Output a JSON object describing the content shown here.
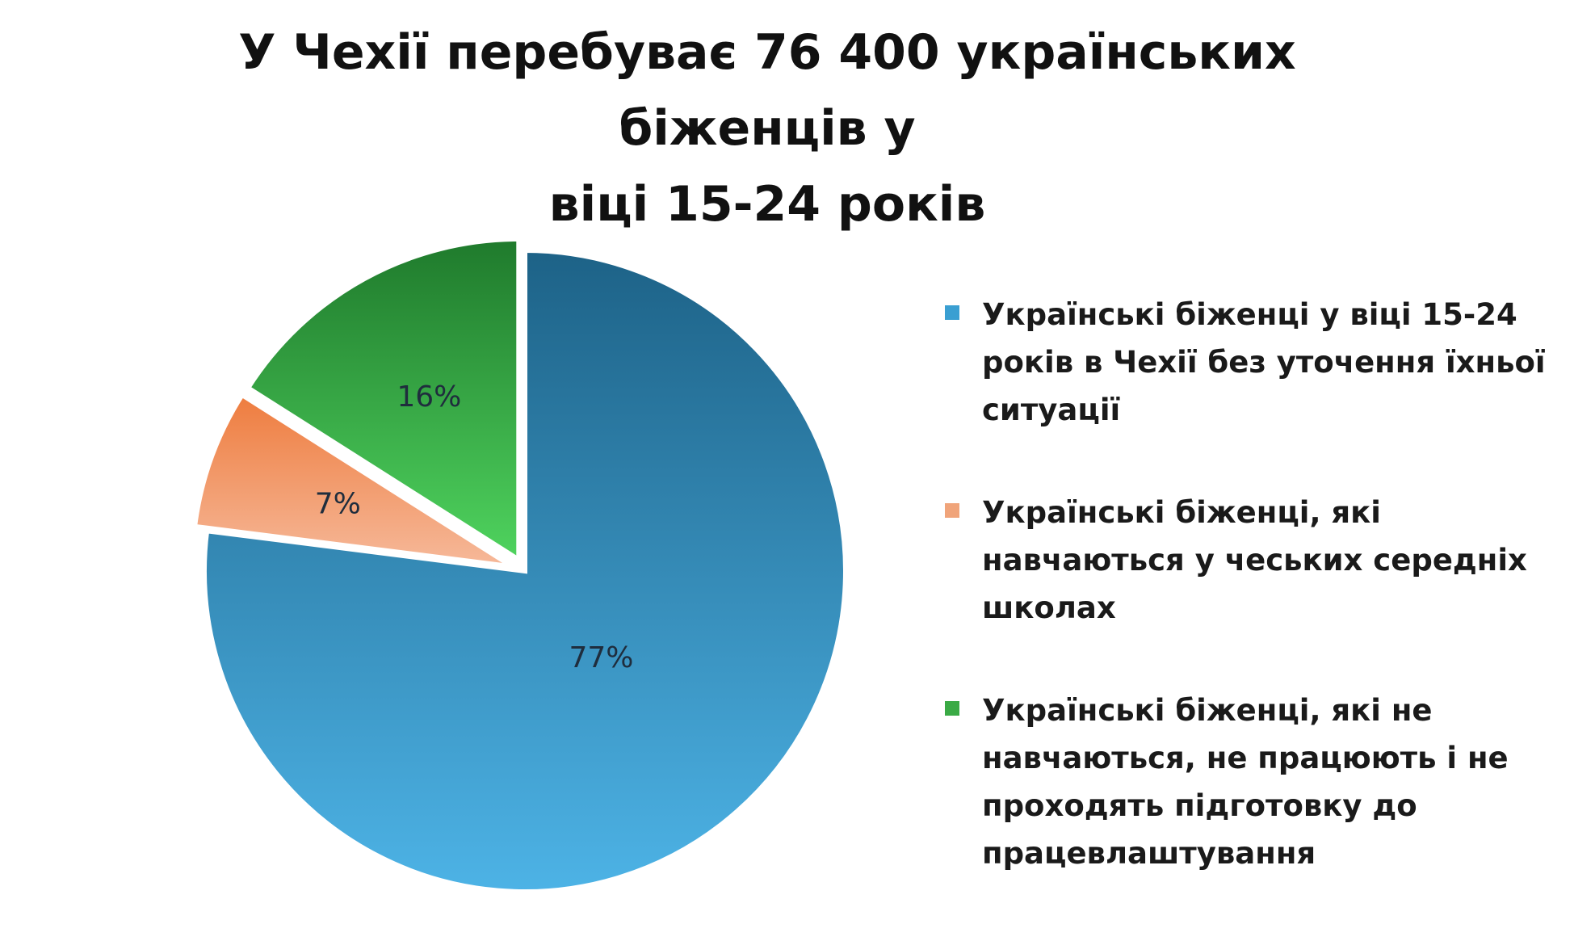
{
  "title_lines": [
    "У Чехії перебуває 76 400 українських біженців у",
    "віці 15-24 років"
  ],
  "chart_data": {
    "type": "pie",
    "title": "У Чехії перебуває 76 400 українських біженців у віці 15-24 років",
    "series": [
      {
        "name": "Українські біженці у віці 15-24 років в Чехії без уточення їхньої ситуації",
        "value": 77,
        "label": "77%",
        "color_top": "#1d6287",
        "color_bottom": "#4db3e6"
      },
      {
        "name": "Українські біженці, які навчаються у чеських середніх школах",
        "value": 7,
        "label": "7%",
        "color_top": "#ee7c3e",
        "color_bottom": "#f6b99a"
      },
      {
        "name": "Українські біженці, які не навчаються, не працюють і не проходять підготовку до працевлаштування",
        "value": 16,
        "label": "16%",
        "color_top": "#1f7a2c",
        "color_bottom": "#4fd35e"
      }
    ],
    "legend_position": "right",
    "exploded_slices": [
      "7%",
      "16%"
    ]
  },
  "legend": [
    {
      "text": "Українські біженці у віці 15-24 років в Чехії без уточення їхньої ситуації",
      "color": "#3a9fd2"
    },
    {
      "text": "Українські біженці, які навчаються у чеських середніх школах",
      "color": "#f0a47a"
    },
    {
      "text": "Українські біженці, які не навчаються, не працюють і не проходять підготовку до працевлаштування",
      "color": "#3aaa45"
    }
  ]
}
